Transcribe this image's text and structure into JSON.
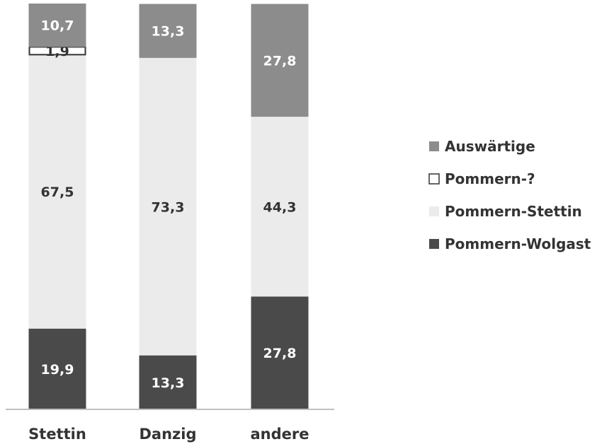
{
  "chart_data": {
    "type": "bar",
    "stacked": true,
    "percent_stacked": true,
    "categories": [
      "Stettin",
      "Danzig",
      "andere"
    ],
    "series": [
      {
        "name": "Pommern-Wolgast",
        "values": [
          19.9,
          13.3,
          27.8
        ],
        "labels": [
          "19,9",
          "13,3",
          "27,8"
        ],
        "color": "#4a4a4a",
        "label_color": "#ffffff"
      },
      {
        "name": "Pommern-Stettin",
        "values": [
          67.5,
          73.3,
          44.3
        ],
        "labels": [
          "67,5",
          "73,3",
          "44,3"
        ],
        "color": "#ebebeb",
        "label_color": "#333333"
      },
      {
        "name": "Pommern-?",
        "values": [
          1.9,
          0,
          0
        ],
        "labels": [
          "1,9",
          "",
          ""
        ],
        "color": "#ffffff",
        "label_color": "#333333"
      },
      {
        "name": "Auswärtige",
        "values": [
          10.7,
          13.3,
          27.8
        ],
        "labels": [
          "10,7",
          "13,3",
          "27,8"
        ],
        "color": "#8c8c8c",
        "label_color": "#ffffff"
      }
    ],
    "legend_order": [
      "Auswärtige",
      "Pommern-?",
      "Pommern-Stettin",
      "Pommern-Wolgast"
    ],
    "legend_position": "right",
    "ylim": [
      0,
      100
    ],
    "grid": false,
    "title": "",
    "xlabel": "",
    "ylabel": ""
  }
}
